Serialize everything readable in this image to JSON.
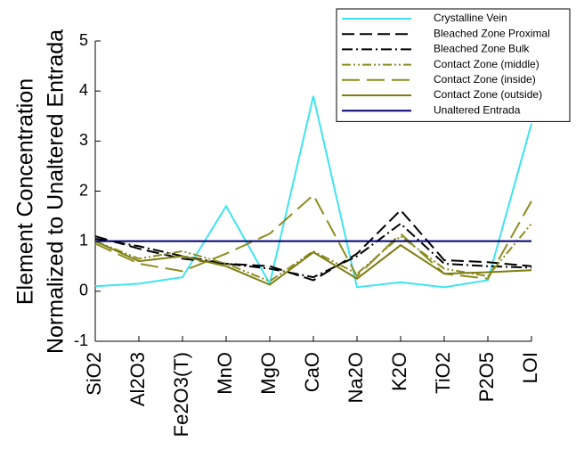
{
  "chart_data": {
    "type": "line",
    "y_label_lines": [
      "Element Concentration",
      "Normalized to Unaltered Entrada"
    ],
    "categories": [
      "SiO2",
      "Al2O3",
      "Fe2O3(T)",
      "MnO",
      "MgO",
      "CaO",
      "Na2O",
      "K2O",
      "TiO2",
      "P2O5",
      "LOI"
    ],
    "series": [
      {
        "name": "Crystalline Vein",
        "color": "#3fe3f0",
        "dash": "solid",
        "values": [
          0.1,
          0.15,
          0.28,
          1.7,
          0.15,
          3.9,
          0.08,
          0.18,
          0.08,
          0.22,
          3.35
        ]
      },
      {
        "name": "Bleached Zone Proximal",
        "color": "#000000",
        "dash": "dashed",
        "values": [
          1.1,
          0.85,
          0.65,
          0.55,
          0.5,
          0.22,
          0.75,
          1.62,
          0.62,
          0.58,
          0.5
        ]
      },
      {
        "name": "Bleached Zone Bulk",
        "color": "#000000",
        "dash": "dash-dot",
        "values": [
          1.05,
          0.9,
          0.7,
          0.55,
          0.45,
          0.28,
          0.7,
          1.35,
          0.55,
          0.5,
          0.47
        ]
      },
      {
        "name": "Contact Zone (middle)",
        "color": "#8c8c1e",
        "dash": "dash-dot-dot",
        "values": [
          1.0,
          0.65,
          0.8,
          0.55,
          0.2,
          0.8,
          0.35,
          1.1,
          0.45,
          0.3,
          1.35
        ]
      },
      {
        "name": "Contact Zone (inside)",
        "color": "#8c8c1e",
        "dash": "long-dash",
        "values": [
          0.95,
          0.55,
          0.4,
          0.75,
          1.15,
          1.92,
          0.3,
          1.15,
          0.35,
          0.25,
          1.8
        ]
      },
      {
        "name": "Contact Zone (outside)",
        "color": "#7d7d10",
        "dash": "solid",
        "values": [
          1.0,
          0.6,
          0.7,
          0.5,
          0.13,
          0.78,
          0.25,
          0.92,
          0.35,
          0.38,
          0.42
        ]
      },
      {
        "name": "Unaltered Entrada",
        "color": "#000070",
        "dash": "solid",
        "values": [
          1,
          1,
          1,
          1,
          1,
          1,
          1,
          1,
          1,
          1,
          1
        ]
      }
    ],
    "ylim": [
      -1,
      5
    ],
    "yticks": [
      -1,
      0,
      1,
      2,
      3,
      4,
      5
    ],
    "legend": "upper-right"
  }
}
